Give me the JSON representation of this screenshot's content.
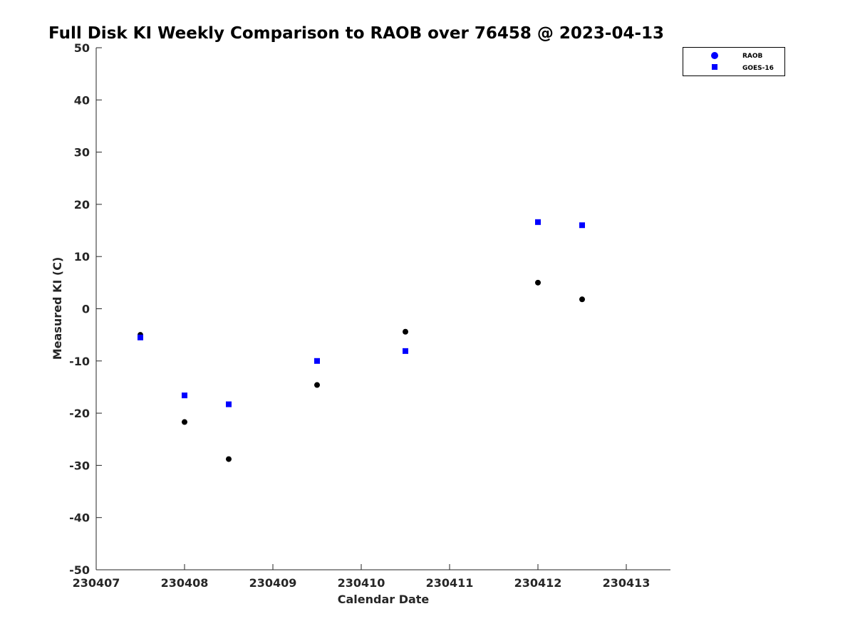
{
  "chart_data": {
    "type": "scatter",
    "title": "Full Disk KI Weekly Comparison to RAOB over 76458 @ 2023-04-13",
    "xlabel": "Calendar Date",
    "ylabel": "Measured KI (C)",
    "xlim": [
      230407,
      230413.5
    ],
    "ylim": [
      -50,
      50
    ],
    "xticks": [
      230407,
      230408,
      230409,
      230410,
      230411,
      230412,
      230413
    ],
    "xtick_labels": [
      "230407",
      "230408",
      "230409",
      "230410",
      "230411",
      "230412",
      "230413"
    ],
    "yticks": [
      -50,
      -40,
      -30,
      -20,
      -10,
      0,
      10,
      20,
      30,
      40,
      50
    ],
    "ytick_labels": [
      "-50",
      "-40",
      "-30",
      "-20",
      "-10",
      "0",
      "10",
      "20",
      "30",
      "40",
      "50"
    ],
    "grid": false,
    "legend_position": "top-right",
    "series": [
      {
        "name": "RAOB",
        "marker": "circle",
        "color": "#000000",
        "legend_color": "#0000ff",
        "x": [
          230407.5,
          230408,
          230408.5,
          230409.5,
          230410.5,
          230412,
          230412.5
        ],
        "y": [
          -5.0,
          -21.7,
          -28.8,
          -14.6,
          -4.4,
          5.0,
          1.8
        ]
      },
      {
        "name": "GOES-16",
        "marker": "square",
        "color": "#0000ff",
        "legend_color": "#0000ff",
        "x": [
          230407.5,
          230408,
          230408.5,
          230409.5,
          230410.5,
          230412,
          230412.5
        ],
        "y": [
          -5.5,
          -16.6,
          -18.3,
          -10.0,
          -8.1,
          16.6,
          16.0
        ]
      }
    ]
  }
}
